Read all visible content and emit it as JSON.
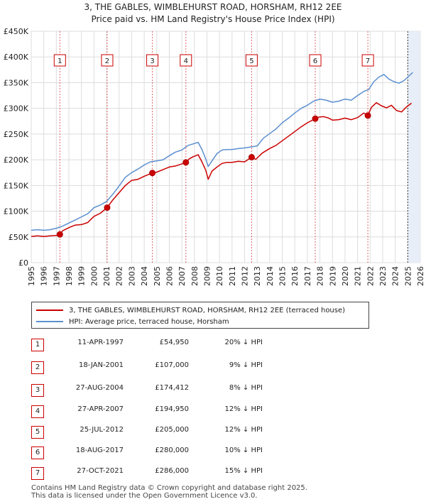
{
  "title": {
    "line1": "3, THE GABLES, WIMBLEHURST ROAD, HORSHAM, RH12 2EE",
    "line2": "Price paid vs. HM Land Registry's House Price Index (HPI)"
  },
  "legend": {
    "property_label": "3, THE GABLES, WIMBLEHURST ROAD, HORSHAM, RH12 2EE (terraced house)",
    "hpi_label": "HPI: Average price, terraced house, Horsham"
  },
  "colors": {
    "property": "#cc0000",
    "hpi": "#5b8fd0",
    "shade": "#e8eef8"
  },
  "chart_data": {
    "type": "line",
    "title": "Price paid vs. HM Land Registry's House Price Index (HPI)",
    "xlim": [
      1995,
      2026
    ],
    "ylim": [
      0,
      450000
    ],
    "x_ticks": [
      "1995",
      "1996",
      "1997",
      "1998",
      "1999",
      "2000",
      "2001",
      "2002",
      "2003",
      "2004",
      "2005",
      "2006",
      "2007",
      "2008",
      "2009",
      "2010",
      "2011",
      "2012",
      "2013",
      "2014",
      "2015",
      "2016",
      "2017",
      "2018",
      "2019",
      "2020",
      "2021",
      "2022",
      "2023",
      "2024",
      "2025",
      "2026"
    ],
    "y_ticks": [
      {
        "value": 0,
        "label": "£0"
      },
      {
        "value": 50000,
        "label": "£50K"
      },
      {
        "value": 100000,
        "label": "£100K"
      },
      {
        "value": 150000,
        "label": "£150K"
      },
      {
        "value": 200000,
        "label": "£200K"
      },
      {
        "value": 250000,
        "label": "£250K"
      },
      {
        "value": 300000,
        "label": "£300K"
      },
      {
        "value": 350000,
        "label": "£350K"
      },
      {
        "value": 400000,
        "label": "£400K"
      },
      {
        "value": 450000,
        "label": "£450K"
      }
    ],
    "series": [
      {
        "name": "3, THE GABLES, WIMBLEHURST ROAD, HORSHAM, RH12 2EE (terraced house)",
        "x": [
          1995.0,
          1995.5,
          1996.0,
          1996.5,
          1997.0,
          1997.28,
          1997.5,
          1998.0,
          1998.5,
          1999.0,
          1999.5,
          2000.0,
          2000.5,
          2001.05,
          2001.5,
          2002.0,
          2002.5,
          2003.0,
          2003.5,
          2004.0,
          2004.65,
          2005.0,
          2005.5,
          2006.0,
          2006.5,
          2007.0,
          2007.32,
          2007.6,
          2007.9,
          2008.3,
          2008.6,
          2008.9,
          2009.1,
          2009.4,
          2009.8,
          2010.2,
          2010.6,
          2011.0,
          2011.5,
          2012.0,
          2012.56,
          2012.9,
          2013.4,
          2014.0,
          2014.5,
          2015.0,
          2015.5,
          2016.0,
          2016.5,
          2017.0,
          2017.63,
          2017.9,
          2018.3,
          2018.7,
          2019.0,
          2019.5,
          2020.0,
          2020.5,
          2021.0,
          2021.5,
          2021.82,
          2022.1,
          2022.5,
          2022.9,
          2023.3,
          2023.7,
          2024.1,
          2024.5,
          2024.9,
          2025.3
        ],
        "values": [
          51000,
          52000,
          51000,
          52000,
          53000,
          54950,
          62000,
          68000,
          73000,
          74000,
          78000,
          90000,
          96000,
          107000,
          122000,
          136000,
          150000,
          160000,
          162000,
          168000,
          174412,
          176000,
          181000,
          186000,
          188000,
          192000,
          194950,
          202000,
          206000,
          210000,
          196000,
          180000,
          162000,
          178000,
          186000,
          193000,
          195000,
          195000,
          197000,
          196000,
          205000,
          201000,
          213000,
          222000,
          228000,
          237000,
          246000,
          255000,
          264000,
          272000,
          280000,
          283000,
          284000,
          281000,
          277000,
          278000,
          281000,
          278000,
          282000,
          291000,
          286000,
          302000,
          311000,
          305000,
          301000,
          306000,
          296000,
          293000,
          303000,
          310000
        ]
      },
      {
        "name": "HPI: Average price, terraced house, Horsham",
        "x": [
          1995.0,
          1995.5,
          1996.0,
          1996.5,
          1997.0,
          1997.5,
          1998.0,
          1998.5,
          1999.0,
          1999.5,
          2000.0,
          2000.5,
          2001.0,
          2001.5,
          2002.0,
          2002.5,
          2003.0,
          2003.5,
          2004.0,
          2004.5,
          2005.0,
          2005.5,
          2006.0,
          2006.5,
          2007.0,
          2007.5,
          2007.9,
          2008.3,
          2008.6,
          2008.9,
          2009.1,
          2009.4,
          2009.8,
          2010.2,
          2010.6,
          2011.0,
          2011.5,
          2012.0,
          2012.5,
          2013.0,
          2013.5,
          2014.0,
          2014.5,
          2015.0,
          2015.5,
          2016.0,
          2016.5,
          2017.0,
          2017.5,
          2018.0,
          2018.5,
          2019.0,
          2019.5,
          2020.0,
          2020.5,
          2021.0,
          2021.5,
          2021.9,
          2022.3,
          2022.7,
          2023.1,
          2023.5,
          2023.9,
          2024.3,
          2024.7,
          2025.1,
          2025.4
        ],
        "values": [
          63000,
          64000,
          63000,
          64000,
          67000,
          71000,
          77000,
          83000,
          89000,
          95000,
          107000,
          112000,
          119000,
          133000,
          149000,
          166000,
          175000,
          182000,
          190000,
          196000,
          198000,
          200000,
          208000,
          215000,
          219000,
          228000,
          231000,
          234000,
          220000,
          202000,
          187000,
          198000,
          212000,
          219000,
          220000,
          220000,
          222000,
          223000,
          225000,
          227000,
          242000,
          251000,
          260000,
          272000,
          281000,
          291000,
          300000,
          306000,
          314000,
          318000,
          316000,
          312000,
          314000,
          318000,
          316000,
          325000,
          333000,
          337000,
          352000,
          361000,
          366000,
          357000,
          352000,
          349000,
          354000,
          363000,
          370000
        ]
      }
    ],
    "sales": [
      {
        "num": "1",
        "x": 1997.28,
        "value": 54950
      },
      {
        "num": "2",
        "x": 2001.05,
        "value": 107000
      },
      {
        "num": "3",
        "x": 2004.65,
        "value": 174412
      },
      {
        "num": "4",
        "x": 2007.32,
        "value": 194950
      },
      {
        "num": "5",
        "x": 2012.56,
        "value": 205000
      },
      {
        "num": "6",
        "x": 2017.63,
        "value": 280000
      },
      {
        "num": "7",
        "x": 2021.82,
        "value": 286000
      }
    ],
    "shaded_ranges": [
      [
        2025.0,
        2026.0
      ]
    ]
  },
  "table": [
    {
      "num": "1",
      "date": "11-APR-1997",
      "price": "£54,950",
      "hpi": "20% ↓ HPI"
    },
    {
      "num": "2",
      "date": "18-JAN-2001",
      "price": "£107,000",
      "hpi": "9% ↓ HPI"
    },
    {
      "num": "3",
      "date": "27-AUG-2004",
      "price": "£174,412",
      "hpi": "8% ↓ HPI"
    },
    {
      "num": "4",
      "date": "27-APR-2007",
      "price": "£194,950",
      "hpi": "12% ↓ HPI"
    },
    {
      "num": "5",
      "date": "25-JUL-2012",
      "price": "£205,000",
      "hpi": "12% ↓ HPI"
    },
    {
      "num": "6",
      "date": "18-AUG-2017",
      "price": "£280,000",
      "hpi": "10% ↓ HPI"
    },
    {
      "num": "7",
      "date": "27-OCT-2021",
      "price": "£286,000",
      "hpi": "15% ↓ HPI"
    }
  ],
  "footer": {
    "line1": "Contains HM Land Registry data © Crown copyright and database right 2025.",
    "line2": "This data is licensed under the Open Government Licence v3.0."
  }
}
